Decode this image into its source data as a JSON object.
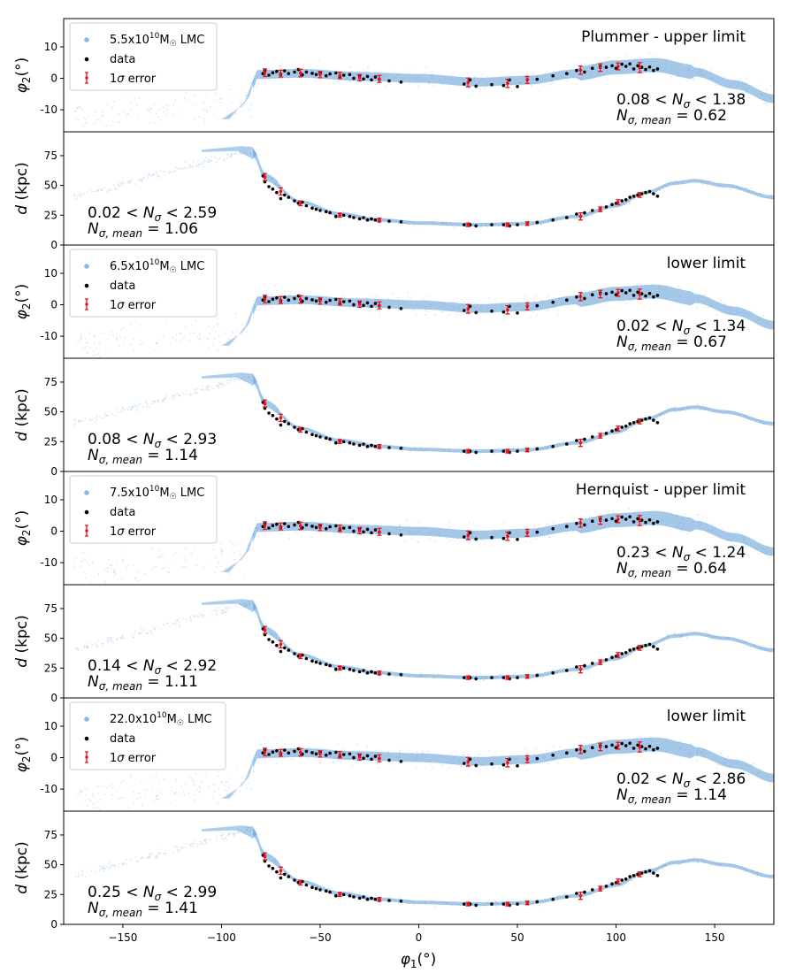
{
  "figure": {
    "xlabel": "φ1(°)",
    "xlim": [
      -180,
      180
    ],
    "xticks": [
      -150,
      -100,
      -50,
      0,
      50,
      100,
      150
    ],
    "colors": {
      "model": "#5b9bd5",
      "data": "#000000",
      "error": "#e8141c"
    }
  },
  "chart_data": [
    {
      "type": "scatter",
      "quantity": "phi2",
      "ylabel": "φ2(°)",
      "ylim": [
        -17,
        19
      ],
      "yticks": [
        -10,
        0,
        10
      ],
      "legend": {
        "placement": "upper-left",
        "model_mass": "5.5",
        "model_label": "LMC",
        "data_label": "data",
        "error_label": "1σ error"
      },
      "title": "Plummer - upper limit",
      "nsigma_range": [
        "0.08",
        "1.38"
      ],
      "nsigma_mean": "0.62"
    },
    {
      "type": "scatter",
      "quantity": "distance",
      "ylabel": "d (kpc)",
      "ylim": [
        0,
        95
      ],
      "yticks": [
        0,
        25,
        50,
        75
      ],
      "nsigma_range": [
        "0.02",
        "2.59"
      ],
      "nsigma_mean": "1.06"
    },
    {
      "type": "scatter",
      "quantity": "phi2",
      "ylabel": "φ2(°)",
      "ylim": [
        -17,
        19
      ],
      "yticks": [
        -10,
        0,
        10
      ],
      "legend": {
        "placement": "upper-left",
        "model_mass": "6.5",
        "model_label": "LMC",
        "data_label": "data",
        "error_label": "1σ error"
      },
      "title": "lower limit",
      "nsigma_range": [
        "0.02",
        "1.34"
      ],
      "nsigma_mean": "0.67"
    },
    {
      "type": "scatter",
      "quantity": "distance",
      "ylabel": "d (kpc)",
      "ylim": [
        0,
        95
      ],
      "yticks": [
        0,
        25,
        50,
        75
      ],
      "nsigma_range": [
        "0.08",
        "2.93"
      ],
      "nsigma_mean": "1.14"
    },
    {
      "type": "scatter",
      "quantity": "phi2",
      "ylabel": "φ2(°)",
      "ylim": [
        -17,
        19
      ],
      "yticks": [
        -10,
        0,
        10
      ],
      "legend": {
        "placement": "upper-left",
        "model_mass": "7.5",
        "model_label": "LMC",
        "data_label": "data",
        "error_label": "1σ error"
      },
      "title": "Hernquist - upper limit",
      "nsigma_range": [
        "0.23",
        "1.24"
      ],
      "nsigma_mean": "0.64"
    },
    {
      "type": "scatter",
      "quantity": "distance",
      "ylabel": "d (kpc)",
      "ylim": [
        0,
        95
      ],
      "yticks": [
        0,
        25,
        50,
        75
      ],
      "nsigma_range": [
        "0.14",
        "2.92"
      ],
      "nsigma_mean": "1.11"
    },
    {
      "type": "scatter",
      "quantity": "phi2",
      "ylabel": "φ2(°)",
      "ylim": [
        -17,
        19
      ],
      "yticks": [
        -10,
        0,
        10
      ],
      "legend": {
        "placement": "upper-left",
        "model_mass": "22.0",
        "model_label": "LMC",
        "data_label": "data",
        "error_label": "1σ error"
      },
      "title": "lower limit",
      "nsigma_range": [
        "0.02",
        "2.86"
      ],
      "nsigma_mean": "1.14"
    },
    {
      "type": "scatter",
      "quantity": "distance",
      "ylabel": "d (kpc)",
      "ylim": [
        0,
        95
      ],
      "yticks": [
        0,
        25,
        50,
        75
      ],
      "nsigma_range": [
        "0.25",
        "2.99"
      ],
      "nsigma_mean": "1.41"
    }
  ],
  "observations": {
    "phi2_points": [
      [
        -79,
        1.5
      ],
      [
        -78,
        2.5
      ],
      [
        -76,
        1.0
      ],
      [
        -74,
        1.8
      ],
      [
        -72,
        2.2
      ],
      [
        -70,
        1.2
      ],
      [
        -68,
        2.4
      ],
      [
        -66,
        1.5
      ],
      [
        -63,
        2.0
      ],
      [
        -61,
        2.8
      ],
      [
        -59,
        1.1
      ],
      [
        -57,
        2.0
      ],
      [
        -54,
        1.6
      ],
      [
        -52,
        1.2
      ],
      [
        -50,
        1.8
      ],
      [
        -47,
        0.8
      ],
      [
        -45,
        1.4
      ],
      [
        -42,
        1.7
      ],
      [
        -40,
        0.5
      ],
      [
        -38,
        1.0
      ],
      [
        -35,
        1.2
      ],
      [
        -33,
        0.0
      ],
      [
        -30,
        0.8
      ],
      [
        -28,
        -0.2
      ],
      [
        -26,
        0.6
      ],
      [
        -24,
        -0.5
      ],
      [
        -22,
        0.4
      ],
      [
        -20,
        -0.3
      ],
      [
        -15,
        -0.8
      ],
      [
        -9,
        -1.2
      ],
      [
        23,
        -1.8
      ],
      [
        26,
        -0.5
      ],
      [
        29,
        -2.5
      ],
      [
        37,
        -2.0
      ],
      [
        43,
        -2.3
      ],
      [
        46,
        -0.5
      ],
      [
        50,
        -2.6
      ],
      [
        55,
        -0.4
      ],
      [
        60,
        -0.3
      ],
      [
        68,
        0.8
      ],
      [
        75,
        1.5
      ],
      [
        80,
        2.5
      ],
      [
        84,
        2.0
      ],
      [
        88,
        3.2
      ],
      [
        92,
        3.8
      ],
      [
        95,
        3.5
      ],
      [
        98,
        4.0
      ],
      [
        100,
        3.2
      ],
      [
        103,
        4.5
      ],
      [
        105,
        3.8
      ],
      [
        107,
        4.6
      ],
      [
        109,
        3.0
      ],
      [
        111,
        4.0
      ],
      [
        113,
        3.5
      ],
      [
        115,
        2.8
      ],
      [
        117,
        3.6
      ],
      [
        119,
        2.5
      ],
      [
        121,
        3.0
      ]
    ],
    "phi2_errors": [
      [
        -78,
        1.8,
        1.2
      ],
      [
        -70,
        1.5,
        1.1
      ],
      [
        -60,
        1.7,
        1.2
      ],
      [
        -50,
        1.2,
        1.0
      ],
      [
        -40,
        0.9,
        1.0
      ],
      [
        -30,
        0.2,
        1.0
      ],
      [
        -20,
        -0.2,
        1.1
      ],
      [
        25,
        -1.3,
        1.4
      ],
      [
        45,
        -1.6,
        1.3
      ],
      [
        55,
        -0.5,
        1.1
      ],
      [
        82,
        2.6,
        1.3
      ],
      [
        92,
        3.4,
        1.2
      ],
      [
        101,
        3.8,
        1.1
      ],
      [
        112,
        3.4,
        1.6
      ]
    ],
    "dist_points": [
      [
        -79,
        58
      ],
      [
        -78,
        53
      ],
      [
        -76,
        49
      ],
      [
        -74,
        47
      ],
      [
        -72,
        44
      ],
      [
        -70,
        39
      ],
      [
        -68,
        42
      ],
      [
        -66,
        40
      ],
      [
        -63,
        37
      ],
      [
        -61,
        35
      ],
      [
        -59,
        36
      ],
      [
        -57,
        33
      ],
      [
        -54,
        31
      ],
      [
        -52,
        30
      ],
      [
        -50,
        29
      ],
      [
        -47,
        28
      ],
      [
        -45,
        27
      ],
      [
        -42,
        24
      ],
      [
        -40,
        26
      ],
      [
        -38,
        25
      ],
      [
        -35,
        24
      ],
      [
        -33,
        23
      ],
      [
        -30,
        22
      ],
      [
        -28,
        23
      ],
      [
        -26,
        21
      ],
      [
        -24,
        22
      ],
      [
        -22,
        21
      ],
      [
        -20,
        20
      ],
      [
        -15,
        20
      ],
      [
        -9,
        19.5
      ],
      [
        23,
        17
      ],
      [
        26,
        17
      ],
      [
        29,
        16
      ],
      [
        37,
        17
      ],
      [
        43,
        17
      ],
      [
        46,
        16
      ],
      [
        50,
        17
      ],
      [
        55,
        18
      ],
      [
        60,
        19
      ],
      [
        68,
        21
      ],
      [
        75,
        23
      ],
      [
        80,
        26
      ],
      [
        84,
        27
      ],
      [
        88,
        29
      ],
      [
        92,
        30
      ],
      [
        95,
        32
      ],
      [
        98,
        34
      ],
      [
        100,
        35
      ],
      [
        103,
        37
      ],
      [
        105,
        38
      ],
      [
        107,
        40
      ],
      [
        109,
        41
      ],
      [
        111,
        42
      ],
      [
        113,
        43
      ],
      [
        115,
        44
      ],
      [
        117,
        45
      ],
      [
        119,
        43
      ],
      [
        121,
        41
      ]
    ],
    "dist_errors": [
      [
        -78,
        57,
        3
      ],
      [
        -70,
        45,
        3
      ],
      [
        -60,
        35,
        2
      ],
      [
        -40,
        25,
        1.5
      ],
      [
        -20,
        21,
        1.5
      ],
      [
        25,
        17,
        1.5
      ],
      [
        45,
        17,
        1.5
      ],
      [
        55,
        18,
        1.5
      ],
      [
        82,
        24,
        3
      ],
      [
        92,
        30,
        2
      ],
      [
        101,
        36,
        2
      ],
      [
        112,
        42,
        2
      ]
    ]
  }
}
